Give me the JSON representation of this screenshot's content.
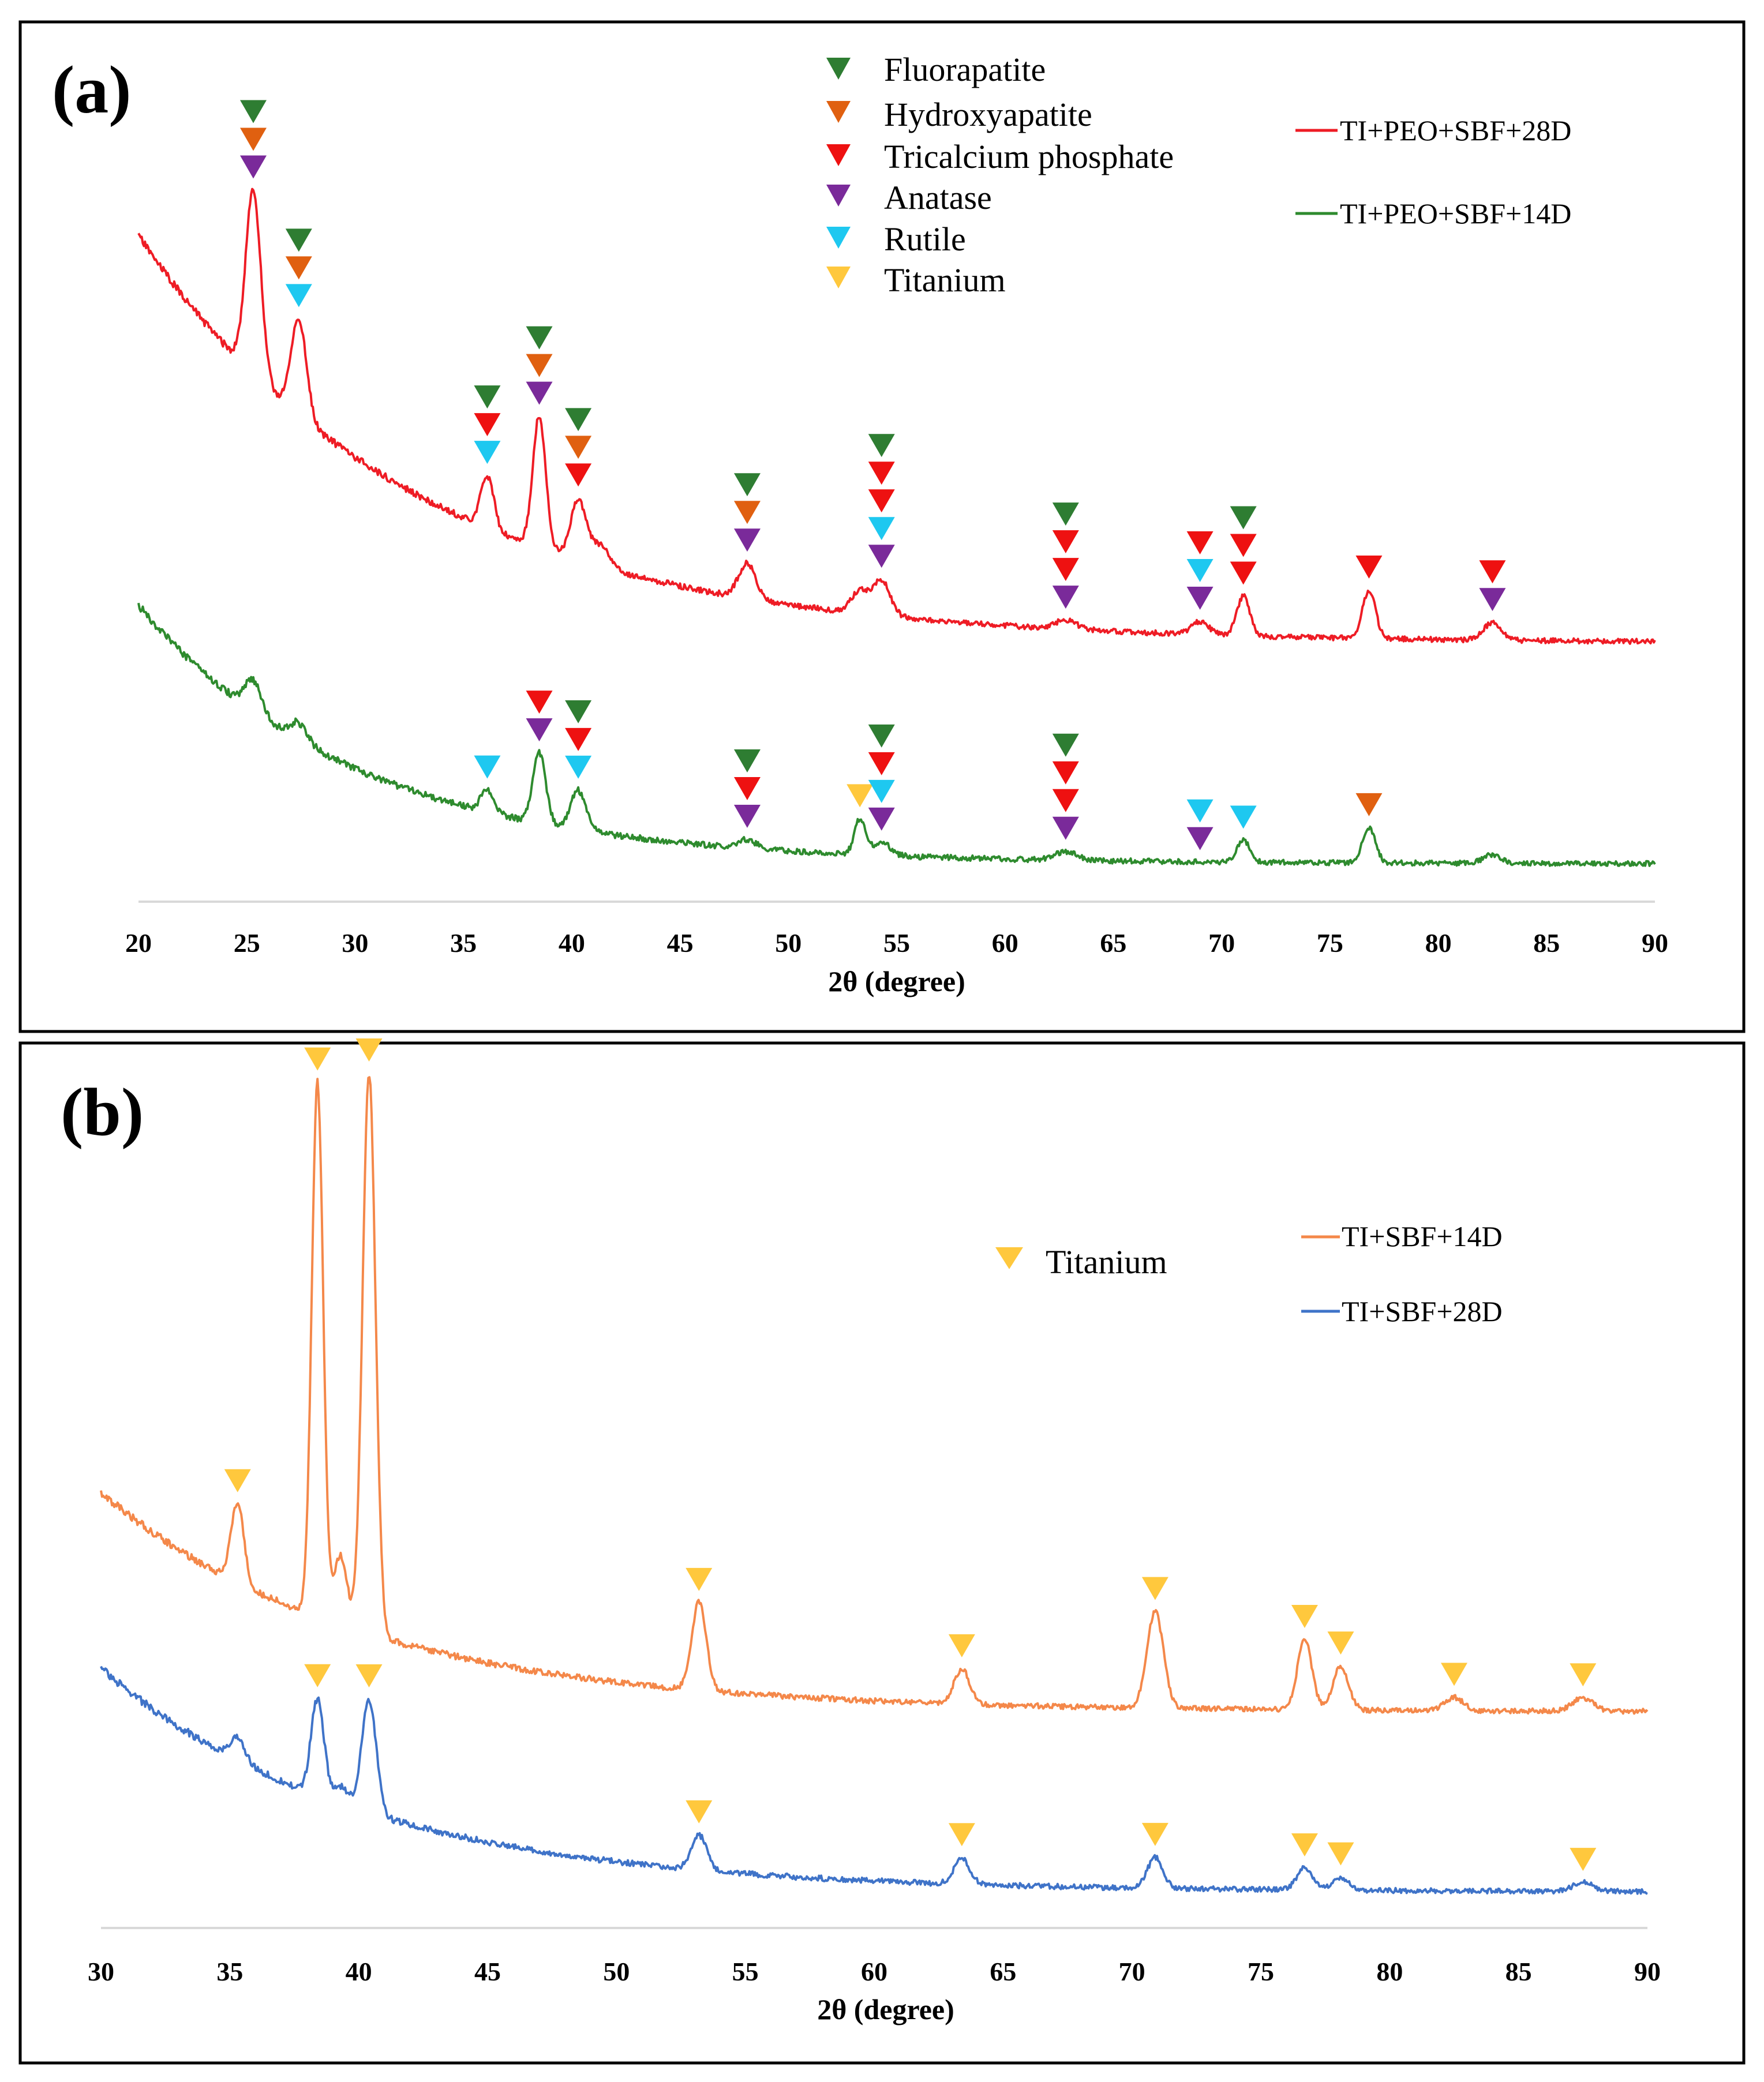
{
  "chart_data": [
    {
      "panel_label": "(a)",
      "type": "line",
      "title": "",
      "xlabel": "2θ (degree)",
      "ylabel": "",
      "xlim": [
        20,
        90
      ],
      "xticks": [
        "20",
        "25",
        "30",
        "35",
        "40",
        "45",
        "50",
        "55",
        "60",
        "65",
        "70",
        "75",
        "80",
        "85",
        "90"
      ],
      "grid": false,
      "phases": [
        {
          "name": "Fluorapatite",
          "color": "#2e7d32"
        },
        {
          "name": "Hydroxyapatite",
          "color": "#e06010"
        },
        {
          "name": "Tricalcium phosphate",
          "color": "#ee1111"
        },
        {
          "name": "Anatase",
          "color": "#7a2a9a"
        },
        {
          "name": "Rutile",
          "color": "#1ec8f0"
        },
        {
          "name": "Titanium",
          "color": "#ffc83d"
        }
      ],
      "series": [
        {
          "name": "TI+PEO+SBF+28D",
          "color": "#ee1c25",
          "baseline": {
            "start": 100,
            "end": 7,
            "decay": 5.5
          },
          "peaks": [
            {
              "x": 25.3,
              "h": 42,
              "w": 0.35
            },
            {
              "x": 27.4,
              "h": 22,
              "w": 0.35
            },
            {
              "x": 36.1,
              "h": 12,
              "w": 0.3
            },
            {
              "x": 38.5,
              "h": 30,
              "w": 0.3
            },
            {
              "x": 40.3,
              "h": 14,
              "w": 0.35
            },
            {
              "x": 41.3,
              "h": 5,
              "w": 0.4
            },
            {
              "x": 48.1,
              "h": 8,
              "w": 0.4
            },
            {
              "x": 53.3,
              "h": 5,
              "w": 0.4
            },
            {
              "x": 54.3,
              "h": 8,
              "w": 0.4
            },
            {
              "x": 62.8,
              "h": 2,
              "w": 0.5
            },
            {
              "x": 69.0,
              "h": 3,
              "w": 0.4
            },
            {
              "x": 71.0,
              "h": 9,
              "w": 0.3
            },
            {
              "x": 76.8,
              "h": 11,
              "w": 0.3
            },
            {
              "x": 82.5,
              "h": 4,
              "w": 0.4
            }
          ],
          "markers": [
            {
              "x": 25.3,
              "phases": [
                "Fluorapatite",
                "Hydroxyapatite",
                "Anatase"
              ]
            },
            {
              "x": 27.4,
              "phases": [
                "Fluorapatite",
                "Hydroxyapatite",
                "Rutile"
              ]
            },
            {
              "x": 36.1,
              "phases": [
                "Fluorapatite",
                "Tricalcium phosphate",
                "Rutile"
              ]
            },
            {
              "x": 38.5,
              "phases": [
                "Fluorapatite",
                "Hydroxyapatite",
                "Anatase"
              ]
            },
            {
              "x": 40.3,
              "phases": [
                "Fluorapatite",
                "Hydroxyapatite",
                "Tricalcium phosphate"
              ]
            },
            {
              "x": 48.1,
              "phases": [
                "Fluorapatite",
                "Hydroxyapatite",
                "Anatase"
              ]
            },
            {
              "x": 54.3,
              "phases": [
                "Fluorapatite",
                "Tricalcium phosphate",
                "Tricalcium phosphate",
                "Rutile",
                "Anatase"
              ]
            },
            {
              "x": 62.8,
              "phases": [
                "Fluorapatite",
                "Tricalcium phosphate",
                "Tricalcium phosphate",
                "Anatase"
              ]
            },
            {
              "x": 69.0,
              "phases": [
                "Tricalcium phosphate",
                "Rutile",
                "Anatase"
              ]
            },
            {
              "x": 71.0,
              "phases": [
                "Fluorapatite",
                "Tricalcium phosphate",
                "Tricalcium phosphate"
              ]
            },
            {
              "x": 76.8,
              "phases": [
                "Tricalcium phosphate"
              ]
            },
            {
              "x": 82.5,
              "phases": [
                "Tricalcium phosphate",
                "Anatase"
              ]
            }
          ]
        },
        {
          "name": "TI+PEO+SBF+14D",
          "color": "#2e8b2e",
          "baseline": {
            "start": 62,
            "end": 3,
            "decay": 7
          },
          "peaks": [
            {
              "x": 25.3,
              "h": 7,
              "w": 0.4
            },
            {
              "x": 27.4,
              "h": 4,
              "w": 0.4
            },
            {
              "x": 36.1,
              "h": 5,
              "w": 0.3
            },
            {
              "x": 38.5,
              "h": 16,
              "w": 0.3
            },
            {
              "x": 40.3,
              "h": 9,
              "w": 0.35
            },
            {
              "x": 48.1,
              "h": 2,
              "w": 0.4
            },
            {
              "x": 53.3,
              "h": 8,
              "w": 0.25
            },
            {
              "x": 54.3,
              "h": 3,
              "w": 0.4
            },
            {
              "x": 62.8,
              "h": 2,
              "w": 0.5
            },
            {
              "x": 71.0,
              "h": 5,
              "w": 0.3
            },
            {
              "x": 76.8,
              "h": 8,
              "w": 0.3
            },
            {
              "x": 82.5,
              "h": 2,
              "w": 0.4
            }
          ],
          "markers": [
            {
              "x": 36.1,
              "phases": [
                "Rutile"
              ]
            },
            {
              "x": 38.5,
              "phases": [
                "Tricalcium phosphate",
                "Anatase"
              ]
            },
            {
              "x": 40.3,
              "phases": [
                "Fluorapatite",
                "Tricalcium phosphate",
                "Rutile"
              ]
            },
            {
              "x": 48.1,
              "phases": [
                "Fluorapatite",
                "Tricalcium phosphate",
                "Anatase"
              ]
            },
            {
              "x": 53.3,
              "phases": [
                "Titanium"
              ]
            },
            {
              "x": 54.3,
              "phases": [
                "Fluorapatite",
                "Tricalcium phosphate",
                "Rutile",
                "Anatase"
              ]
            },
            {
              "x": 62.8,
              "phases": [
                "Fluorapatite",
                "Tricalcium phosphate",
                "Tricalcium phosphate",
                "Anatase"
              ]
            },
            {
              "x": 69.0,
              "phases": [
                "Rutile",
                "Anatase"
              ]
            },
            {
              "x": 71.0,
              "phases": [
                "Rutile"
              ]
            },
            {
              "x": 76.8,
              "phases": [
                "Hydroxyapatite"
              ]
            }
          ]
        }
      ]
    },
    {
      "panel_label": "(b)",
      "type": "line",
      "title": "",
      "xlabel": "2θ (degree)",
      "ylabel": "",
      "xlim": [
        30,
        90
      ],
      "xticks": [
        "30",
        "35",
        "40",
        "45",
        "50",
        "55",
        "60",
        "65",
        "70",
        "75",
        "80",
        "85",
        "90"
      ],
      "grid": false,
      "phases": [
        {
          "name": "Titanium",
          "color": "#ffc83d"
        }
      ],
      "series": [
        {
          "name": "TI+SBF+14D",
          "color": "#f4884a",
          "baseline": {
            "start": 58,
            "end": 8,
            "decay": 6
          },
          "peaks": [
            {
              "x": 35.3,
              "h": 18,
              "w": 0.25
            },
            {
              "x": 38.4,
              "h": 122,
              "w": 0.22
            },
            {
              "x": 39.3,
              "h": 16,
              "w": 0.25
            },
            {
              "x": 40.4,
              "h": 128,
              "w": 0.25
            },
            {
              "x": 53.2,
              "h": 20,
              "w": 0.28
            },
            {
              "x": 63.4,
              "h": 8,
              "w": 0.3
            },
            {
              "x": 70.9,
              "h": 22,
              "w": 0.32
            },
            {
              "x": 76.7,
              "h": 16,
              "w": 0.28
            },
            {
              "x": 78.1,
              "h": 10,
              "w": 0.3
            },
            {
              "x": 82.5,
              "h": 3,
              "w": 0.35
            },
            {
              "x": 87.5,
              "h": 3,
              "w": 0.4
            }
          ],
          "markers": [
            {
              "x": 35.3,
              "phases": [
                "Titanium"
              ]
            },
            {
              "x": 38.4,
              "phases": [
                "Titanium"
              ]
            },
            {
              "x": 40.4,
              "phases": [
                "Titanium"
              ]
            },
            {
              "x": 53.2,
              "phases": [
                "Titanium"
              ]
            },
            {
              "x": 63.4,
              "phases": [
                "Titanium"
              ]
            },
            {
              "x": 70.9,
              "phases": [
                "Titanium"
              ]
            },
            {
              "x": 76.7,
              "phases": [
                "Titanium"
              ]
            },
            {
              "x": 78.1,
              "phases": [
                "Titanium"
              ]
            },
            {
              "x": 82.5,
              "phases": [
                "Titanium"
              ]
            },
            {
              "x": 87.5,
              "phases": [
                "Titanium"
              ]
            }
          ]
        },
        {
          "name": "TI+SBF+28D",
          "color": "#3f73c8",
          "baseline": {
            "start": 55,
            "end": 4,
            "decay": 6
          },
          "peaks": [
            {
              "x": 35.3,
              "h": 5,
              "w": 0.3
            },
            {
              "x": 38.4,
              "h": 22,
              "w": 0.25
            },
            {
              "x": 39.3,
              "h": 4,
              "w": 0.3
            },
            {
              "x": 40.4,
              "h": 26,
              "w": 0.28
            },
            {
              "x": 53.2,
              "h": 8,
              "w": 0.3
            },
            {
              "x": 63.4,
              "h": 6,
              "w": 0.3
            },
            {
              "x": 70.9,
              "h": 7,
              "w": 0.3
            },
            {
              "x": 76.7,
              "h": 5,
              "w": 0.3
            },
            {
              "x": 78.1,
              "h": 3,
              "w": 0.3
            },
            {
              "x": 87.5,
              "h": 2,
              "w": 0.4
            }
          ],
          "markers": [
            {
              "x": 38.4,
              "phases": [
                "Titanium"
              ]
            },
            {
              "x": 40.4,
              "phases": [
                "Titanium"
              ]
            },
            {
              "x": 53.2,
              "phases": [
                "Titanium"
              ]
            },
            {
              "x": 63.4,
              "phases": [
                "Titanium"
              ]
            },
            {
              "x": 70.9,
              "phases": [
                "Titanium"
              ]
            },
            {
              "x": 76.7,
              "phases": [
                "Titanium"
              ]
            },
            {
              "x": 78.1,
              "phases": [
                "Titanium"
              ]
            },
            {
              "x": 87.5,
              "phases": [
                "Titanium"
              ]
            }
          ]
        }
      ]
    }
  ]
}
